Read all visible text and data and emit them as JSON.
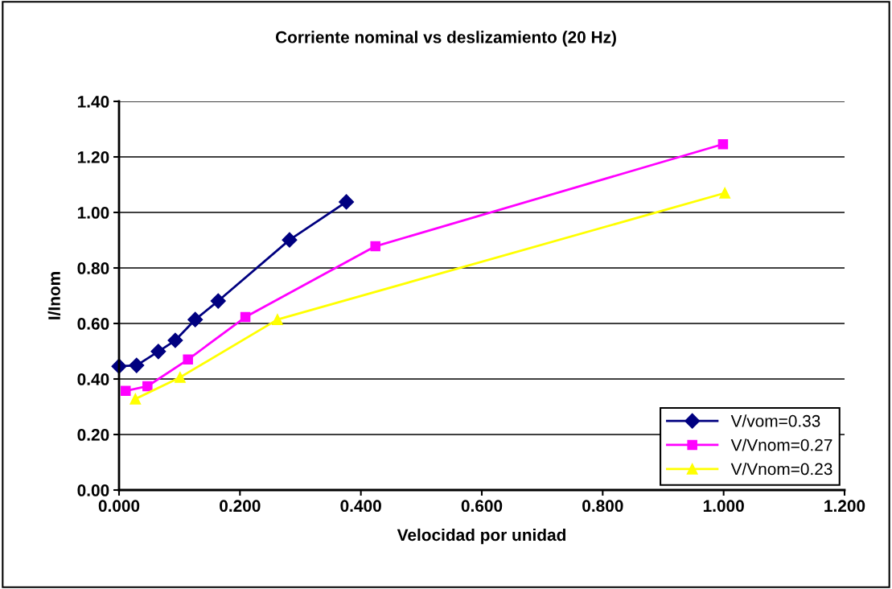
{
  "chart_data": {
    "type": "line",
    "title": "Corriente nominal vs deslizamiento (20 Hz)",
    "xlabel": "Velocidad por unidad",
    "ylabel": "I/Inom",
    "series": [
      {
        "name": "V/vom=0.33",
        "color": "#000080",
        "marker": "diamond",
        "x": [
          0.0,
          0.029,
          0.065,
          0.093,
          0.126,
          0.164,
          0.282,
          0.376
        ],
        "values": [
          0.446,
          0.449,
          0.499,
          0.539,
          0.614,
          0.681,
          0.901,
          1.038
        ]
      },
      {
        "name": "V/Vnom=0.27",
        "color": "#ff00ff",
        "marker": "square",
        "x": [
          0.011,
          0.047,
          0.114,
          0.209,
          0.424,
          0.999
        ],
        "values": [
          0.357,
          0.374,
          0.47,
          0.623,
          0.878,
          1.246
        ]
      },
      {
        "name": "V/Vnom=0.23",
        "color": "#ffff00",
        "marker": "triangle",
        "x": [
          0.027,
          0.101,
          0.262,
          1.002
        ],
        "values": [
          0.328,
          0.406,
          0.614,
          1.07
        ]
      }
    ],
    "xlim": [
      0,
      1.2
    ],
    "ylim": [
      0,
      1.4
    ],
    "xticks": [
      {
        "value": 0,
        "label": "0.000"
      },
      {
        "value": 0.2,
        "label": "0.200"
      },
      {
        "value": 0.4,
        "label": "0.400"
      },
      {
        "value": 0.6,
        "label": "0.600"
      },
      {
        "value": 0.8,
        "label": "0.800"
      },
      {
        "value": 1.0,
        "label": "1.000"
      },
      {
        "value": 1.2,
        "label": "1.200"
      }
    ],
    "yticks": [
      {
        "value": 0,
        "label": "0.00"
      },
      {
        "value": 0.2,
        "label": "0.20"
      },
      {
        "value": 0.4,
        "label": "0.40"
      },
      {
        "value": 0.6,
        "label": "0.60"
      },
      {
        "value": 0.8,
        "label": "0.80"
      },
      {
        "value": 1.0,
        "label": "1.00"
      },
      {
        "value": 1.2,
        "label": "1.20"
      },
      {
        "value": 1.4,
        "label": "1.40"
      }
    ],
    "grid": "y",
    "legend": "bottom right"
  }
}
